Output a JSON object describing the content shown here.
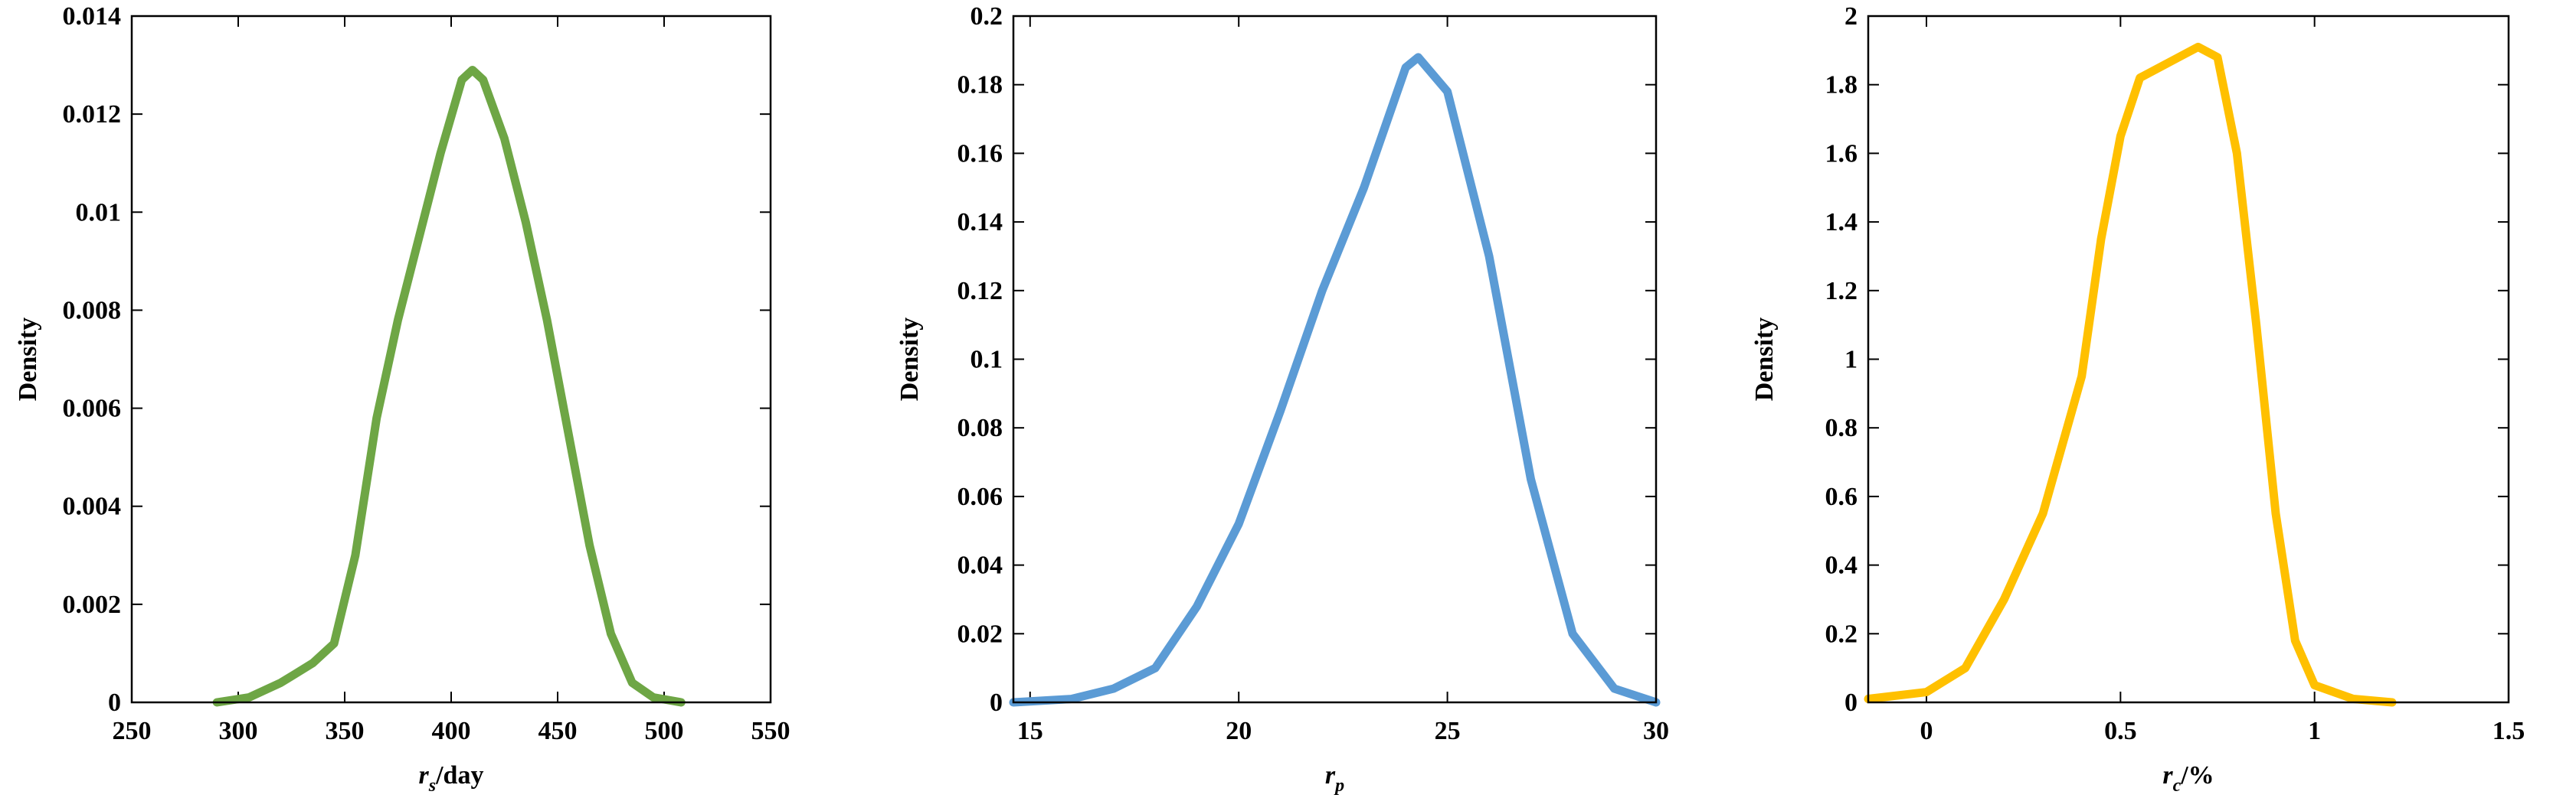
{
  "chart_data": [
    {
      "type": "line",
      "ylabel": "Density",
      "xlabel": {
        "text": "r",
        "subscript": "s",
        "suffix": "/day"
      },
      "color": "#6ea645",
      "x": [
        290,
        305,
        320,
        335,
        345,
        355,
        365,
        375,
        385,
        395,
        405,
        410,
        415,
        425,
        435,
        445,
        455,
        465,
        475,
        485,
        495,
        508
      ],
      "values": [
        0,
        0.0001,
        0.0004,
        0.0008,
        0.0012,
        0.003,
        0.0058,
        0.0078,
        0.0095,
        0.0112,
        0.0127,
        0.0129,
        0.0127,
        0.0115,
        0.0098,
        0.0078,
        0.0055,
        0.0032,
        0.0014,
        0.0004,
        0.0001,
        0
      ],
      "xlim": [
        250,
        550
      ],
      "xticks": [
        250,
        300,
        350,
        400,
        450,
        500,
        550
      ],
      "ylim": [
        0,
        0.014
      ],
      "yticks": [
        0,
        0.002,
        0.004,
        0.006,
        0.008,
        0.01,
        0.012,
        0.014
      ]
    },
    {
      "type": "line",
      "ylabel": "Density",
      "xlabel": {
        "text": "r",
        "subscript": "p"
      },
      "color": "#5b9bd5",
      "x": [
        14.6,
        16,
        17,
        18,
        19,
        20,
        21,
        22,
        23,
        24,
        24.3,
        25,
        26,
        27,
        28,
        29,
        30
      ],
      "values": [
        0,
        0.001,
        0.004,
        0.01,
        0.028,
        0.052,
        0.085,
        0.12,
        0.15,
        0.185,
        0.188,
        0.178,
        0.13,
        0.065,
        0.02,
        0.004,
        0
      ],
      "xlim": [
        14.6,
        30
      ],
      "xticks": [
        15,
        20,
        25,
        30
      ],
      "ylim": [
        0,
        0.2
      ],
      "yticks": [
        0,
        0.02,
        0.04,
        0.06,
        0.08,
        0.1,
        0.12,
        0.14,
        0.16,
        0.18,
        0.2
      ]
    },
    {
      "type": "line",
      "ylabel": "Density",
      "xlabel": {
        "text": "r",
        "subscript": "c",
        "suffix": "/%"
      },
      "color": "#ffc000",
      "x": [
        -0.15,
        0,
        0.1,
        0.2,
        0.3,
        0.4,
        0.45,
        0.5,
        0.55,
        0.65,
        0.7,
        0.75,
        0.8,
        0.85,
        0.9,
        0.95,
        1.0,
        1.1,
        1.2
      ],
      "values": [
        0.01,
        0.03,
        0.1,
        0.3,
        0.55,
        0.95,
        1.35,
        1.65,
        1.82,
        1.88,
        1.91,
        1.88,
        1.6,
        1.1,
        0.55,
        0.18,
        0.05,
        0.01,
        0
      ],
      "xlim": [
        -0.15,
        1.5
      ],
      "xticks": [
        0,
        0.5,
        1,
        1.5
      ],
      "ylim": [
        0,
        2
      ],
      "yticks": [
        0,
        0.2,
        0.4,
        0.6,
        0.8,
        1,
        1.2,
        1.4,
        1.6,
        1.8,
        2
      ]
    }
  ]
}
